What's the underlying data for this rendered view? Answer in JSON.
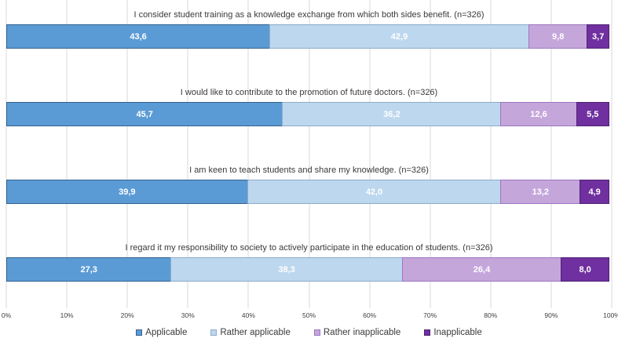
{
  "chart_data": {
    "type": "bar",
    "orientation": "horizontal",
    "stacked": true,
    "unit": "%",
    "title": "",
    "xlabel": "",
    "ylabel": "",
    "x_axis": {
      "min": 0,
      "max": 100,
      "tick_step": 10,
      "ticks": [
        "0%",
        "10%",
        "20%",
        "30%",
        "40%",
        "50%",
        "60%",
        "70%",
        "80%",
        "90%",
        "100%"
      ],
      "gridlines": true
    },
    "legend_position": "bottom",
    "gridline_color": "#d9d9d9",
    "text_color": "#3a3a3a",
    "value_label_color": "#ffffff",
    "series": [
      {
        "name": "Applicable",
        "color": "#5B9BD5",
        "border_color": "#35618F"
      },
      {
        "name": "Rather applicable",
        "color": "#BDD7EE",
        "border_color": "#8CABC9"
      },
      {
        "name": "Rather inapplicable",
        "color": "#C5A6DB",
        "border_color": "#9C77C0"
      },
      {
        "name": "Inapplicable",
        "color": "#7030A0",
        "border_color": "#4E2172"
      }
    ],
    "rows": [
      {
        "title": "I consider student training as a knowledge exchange from which both sides benefit. (n=326)",
        "values": [
          43.6,
          42.9,
          9.8,
          3.7
        ],
        "value_labels": [
          "43,6",
          "42,9",
          "9,8",
          "3,7"
        ]
      },
      {
        "title": "I would like to contribute to the promotion of future doctors. (n=326)",
        "values": [
          45.7,
          36.2,
          12.6,
          5.5
        ],
        "value_labels": [
          "45,7",
          "36,2",
          "12,6",
          "5,5"
        ]
      },
      {
        "title": "I am keen to teach students and share my knowledge. (n=326)",
        "values": [
          39.9,
          42.0,
          13.2,
          4.9
        ],
        "value_labels": [
          "39,9",
          "42,0",
          "13,2",
          "4,9"
        ]
      },
      {
        "title": "I regard it my responsibility to society to actively participate in the education of students. (n=326)",
        "values": [
          27.3,
          38.3,
          26.4,
          8.0
        ],
        "value_labels": [
          "27,3",
          "38,3",
          "26,4",
          "8,0"
        ]
      }
    ],
    "sample_size": "n=326"
  }
}
